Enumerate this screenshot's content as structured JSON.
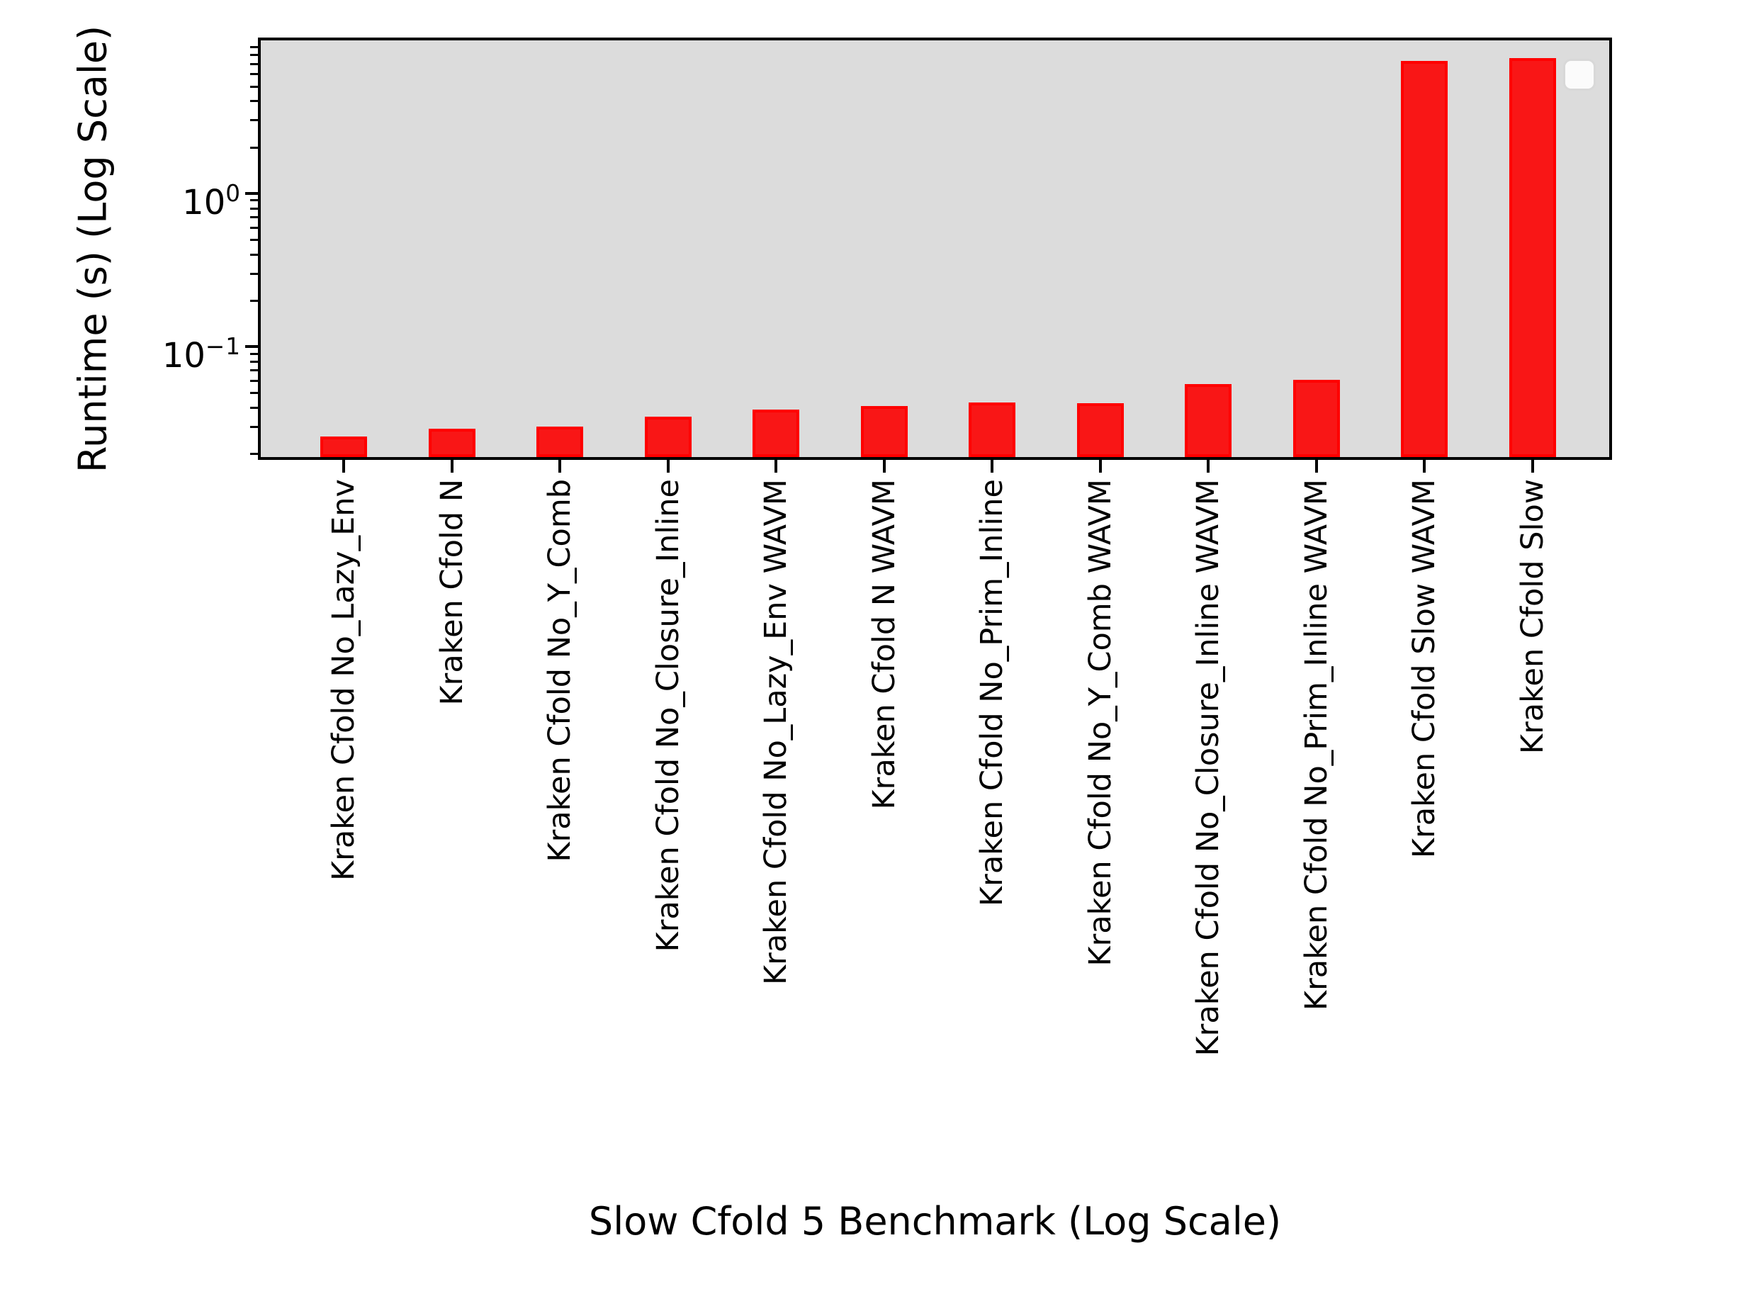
{
  "figure": {
    "xlabel": "Slow Cfold 5 Benchmark (Log Scale)",
    "ylabel": "Runtime (s) (Log Scale)"
  },
  "chart_data": {
    "type": "bar",
    "title": "",
    "xlabel": "Slow Cfold 5 Benchmark (Log Scale)",
    "ylabel": "Runtime (s) (Log Scale)",
    "yscale": "log",
    "ylim": [
      0.019,
      10
    ],
    "grid": false,
    "plot_background": "#dcdcdc",
    "bar_fill": "#f91616",
    "bar_edge": "#ff0000",
    "legend": {
      "visible": true,
      "position": "upper right",
      "entries": []
    },
    "yticks": [
      {
        "value": 1,
        "base": "10",
        "exponent": "0"
      },
      {
        "value": 0.1,
        "base": "10",
        "exponent": "−1"
      }
    ],
    "categories": [
      "Kraken Cfold No_Lazy_Env",
      "Kraken Cfold N",
      "Kraken Cfold No_Y_Comb",
      "Kraken Cfold No_Closure_Inline",
      "Kraken Cfold No_Lazy_Env WAVM",
      "Kraken Cfold N WAVM",
      "Kraken Cfold No_Prim_Inline",
      "Kraken Cfold No_Y_Comb WAVM",
      "Kraken Cfold No_Closure_Inline WAVM",
      "Kraken Cfold No_Prim_Inline WAVM",
      "Kraken Cfold Slow WAVM",
      "Kraken Cfold Slow"
    ],
    "values": [
      0.026,
      0.029,
      0.03,
      0.035,
      0.039,
      0.041,
      0.043,
      0.0428,
      0.057,
      0.061,
      7.35,
      7.7
    ],
    "units": "seconds"
  }
}
